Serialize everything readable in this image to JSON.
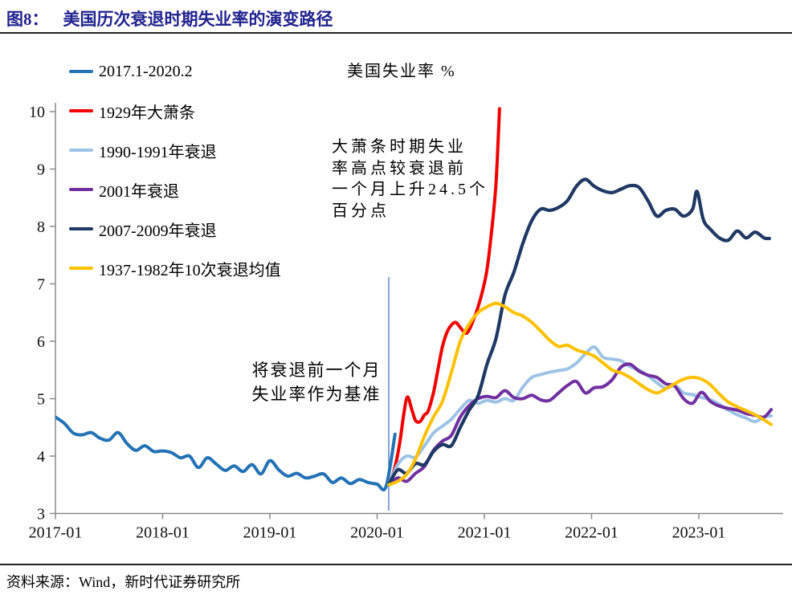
{
  "figure": {
    "label": "图8：",
    "title": "美国历次衰退时期失业率的演变路径"
  },
  "source": "资料来源：Wind，新时代证券研究所",
  "annotations": {
    "depression_note": "大萧条时期失业\n率高点较衰退前\n一个月上升24.5个\n百分点",
    "baseline_note": "将衰退前一个月\n失业率作为基准"
  },
  "chart_data": {
    "type": "line",
    "title": "美国失业率 %",
    "grid": false,
    "legend_position": "upper-left",
    "axis_color": "#8a8a8a",
    "baseline_color": "#4472C4",
    "baseline_month": 37.3,
    "y_axis": {
      "min": 3,
      "max": 10,
      "ticks": [
        3,
        4,
        5,
        6,
        7,
        8,
        9,
        10
      ]
    },
    "x_axis": {
      "tick_months": [
        0,
        12,
        24,
        36,
        48,
        60,
        72
      ],
      "tick_labels": [
        "2017-01",
        "2018-01",
        "2019-01",
        "2020-01",
        "2021-01",
        "2022-01",
        "2023-01"
      ]
    },
    "series": [
      {
        "name": "2017.1-2020.2",
        "color": "#2272B5",
        "width": 4,
        "start_month": 0,
        "points": [
          [
            0,
            4.68
          ],
          [
            1,
            4.57
          ],
          [
            2,
            4.4
          ],
          [
            3,
            4.37
          ],
          [
            4,
            4.41
          ],
          [
            5,
            4.31
          ],
          [
            6,
            4.28
          ],
          [
            7,
            4.41
          ],
          [
            8,
            4.22
          ],
          [
            9,
            4.1
          ],
          [
            10,
            4.18
          ],
          [
            11,
            4.08
          ],
          [
            12,
            4.09
          ],
          [
            13,
            4.06
          ],
          [
            14,
            3.97
          ],
          [
            15,
            4.0
          ],
          [
            16,
            3.8
          ],
          [
            17,
            3.97
          ],
          [
            18,
            3.86
          ],
          [
            19,
            3.75
          ],
          [
            20,
            3.83
          ],
          [
            21,
            3.73
          ],
          [
            22,
            3.85
          ],
          [
            23,
            3.69
          ],
          [
            24,
            3.92
          ],
          [
            25,
            3.76
          ],
          [
            26,
            3.65
          ],
          [
            27,
            3.7
          ],
          [
            28,
            3.62
          ],
          [
            29,
            3.65
          ],
          [
            30,
            3.69
          ],
          [
            31,
            3.54
          ],
          [
            32,
            3.62
          ],
          [
            33,
            3.52
          ],
          [
            34,
            3.59
          ],
          [
            35,
            3.54
          ],
          [
            36,
            3.51
          ],
          [
            37,
            3.47
          ],
          [
            38,
            4.38
          ]
        ]
      },
      {
        "name": "1929年大萧条",
        "color": "#F20000",
        "width": 4,
        "start_month": 37.3,
        "points": [
          [
            0,
            3.5
          ],
          [
            0.6,
            3.75
          ],
          [
            1.2,
            4.2
          ],
          [
            1.7,
            4.75
          ],
          [
            2.1,
            5.03
          ],
          [
            2.6,
            4.8
          ],
          [
            3,
            4.62
          ],
          [
            3.5,
            4.6
          ],
          [
            4,
            4.72
          ],
          [
            4.4,
            4.78
          ],
          [
            5,
            5.1
          ],
          [
            5.5,
            5.5
          ],
          [
            6,
            5.9
          ],
          [
            6.5,
            6.15
          ],
          [
            7,
            6.28
          ],
          [
            7.5,
            6.33
          ],
          [
            8,
            6.24
          ],
          [
            8.6,
            6.14
          ],
          [
            9,
            6.2
          ],
          [
            9.5,
            6.38
          ],
          [
            10,
            6.6
          ],
          [
            10.5,
            6.88
          ],
          [
            11,
            7.25
          ],
          [
            11.5,
            7.9
          ],
          [
            12,
            8.75
          ],
          [
            12.4,
            10.05
          ]
        ]
      },
      {
        "name": "1990-1991年衰退",
        "color": "#9DC3E6",
        "width": 4,
        "start_month": 37.3,
        "points": [
          [
            0,
            3.5
          ],
          [
            1,
            3.85
          ],
          [
            2,
            4.0
          ],
          [
            3,
            3.98
          ],
          [
            4,
            4.18
          ],
          [
            5,
            4.4
          ],
          [
            6,
            4.52
          ],
          [
            7,
            4.64
          ],
          [
            8,
            4.82
          ],
          [
            9,
            4.97
          ],
          [
            10,
            4.92
          ],
          [
            11,
            4.97
          ],
          [
            12,
            4.94
          ],
          [
            13,
            5.0
          ],
          [
            14,
            4.97
          ],
          [
            15,
            5.2
          ],
          [
            16,
            5.37
          ],
          [
            17,
            5.42
          ],
          [
            18,
            5.46
          ],
          [
            19,
            5.49
          ],
          [
            20,
            5.52
          ],
          [
            21,
            5.62
          ],
          [
            22,
            5.78
          ],
          [
            23,
            5.9
          ],
          [
            24,
            5.72
          ],
          [
            25,
            5.69
          ],
          [
            26,
            5.66
          ],
          [
            27,
            5.56
          ],
          [
            28,
            5.5
          ],
          [
            29,
            5.4
          ],
          [
            30,
            5.28
          ],
          [
            31,
            5.18
          ],
          [
            32,
            5.23
          ],
          [
            33,
            5.1
          ],
          [
            34,
            5.07
          ],
          [
            35,
            5.02
          ],
          [
            36,
            4.98
          ],
          [
            37,
            4.9
          ],
          [
            38,
            4.8
          ],
          [
            39,
            4.72
          ],
          [
            40,
            4.66
          ],
          [
            41,
            4.6
          ],
          [
            42,
            4.68
          ],
          [
            42.8,
            4.7
          ]
        ]
      },
      {
        "name": "2001年衰退",
        "color": "#7030A0",
        "width": 4,
        "start_month": 37.3,
        "points": [
          [
            0,
            3.5
          ],
          [
            1,
            3.62
          ],
          [
            2,
            3.56
          ],
          [
            3,
            3.7
          ],
          [
            4,
            3.82
          ],
          [
            5,
            4.1
          ],
          [
            6,
            4.26
          ],
          [
            7,
            4.36
          ],
          [
            8,
            4.68
          ],
          [
            9,
            4.88
          ],
          [
            10,
            5.0
          ],
          [
            11,
            5.04
          ],
          [
            12,
            5.02
          ],
          [
            13,
            5.14
          ],
          [
            14,
            5.02
          ],
          [
            15,
            5.0
          ],
          [
            16,
            5.06
          ],
          [
            17,
            4.98
          ],
          [
            18,
            4.97
          ],
          [
            19,
            5.1
          ],
          [
            20,
            5.23
          ],
          [
            21,
            5.3
          ],
          [
            22,
            5.1
          ],
          [
            23,
            5.19
          ],
          [
            24,
            5.21
          ],
          [
            25,
            5.33
          ],
          [
            26,
            5.55
          ],
          [
            27,
            5.6
          ],
          [
            28,
            5.48
          ],
          [
            29,
            5.41
          ],
          [
            30,
            5.37
          ],
          [
            31,
            5.26
          ],
          [
            32,
            5.22
          ],
          [
            33,
            5.0
          ],
          [
            34,
            4.92
          ],
          [
            35,
            5.11
          ],
          [
            36,
            4.95
          ],
          [
            37,
            4.87
          ],
          [
            38,
            4.83
          ],
          [
            39,
            4.8
          ],
          [
            40,
            4.74
          ],
          [
            41,
            4.71
          ],
          [
            42,
            4.68
          ],
          [
            42.8,
            4.81
          ]
        ]
      },
      {
        "name": "2007-2009年衰退",
        "color": "#1F3864",
        "width": 4.2,
        "start_month": 37.3,
        "points": [
          [
            0,
            3.5
          ],
          [
            1,
            3.76
          ],
          [
            2,
            3.7
          ],
          [
            3,
            3.87
          ],
          [
            4,
            3.85
          ],
          [
            5,
            4.08
          ],
          [
            6,
            4.2
          ],
          [
            7,
            4.18
          ],
          [
            8,
            4.5
          ],
          [
            9,
            4.8
          ],
          [
            10,
            5.05
          ],
          [
            11,
            5.6
          ],
          [
            12,
            6.05
          ],
          [
            13,
            6.8
          ],
          [
            14,
            7.2
          ],
          [
            15,
            7.7
          ],
          [
            16,
            8.1
          ],
          [
            17,
            8.3
          ],
          [
            18,
            8.28
          ],
          [
            19,
            8.33
          ],
          [
            20,
            8.45
          ],
          [
            21,
            8.7
          ],
          [
            22,
            8.82
          ],
          [
            23,
            8.7
          ],
          [
            24,
            8.62
          ],
          [
            25,
            8.59
          ],
          [
            26,
            8.65
          ],
          [
            27,
            8.71
          ],
          [
            28,
            8.68
          ],
          [
            29,
            8.45
          ],
          [
            30,
            8.18
          ],
          [
            31,
            8.28
          ],
          [
            32,
            8.3
          ],
          [
            33,
            8.18
          ],
          [
            34,
            8.3
          ],
          [
            34.5,
            8.61
          ],
          [
            35.2,
            8.12
          ],
          [
            36,
            7.95
          ],
          [
            37,
            7.8
          ],
          [
            38,
            7.76
          ],
          [
            39,
            7.92
          ],
          [
            40,
            7.8
          ],
          [
            41,
            7.9
          ],
          [
            42,
            7.8
          ],
          [
            42.6,
            7.79
          ]
        ]
      },
      {
        "name": "1937-1982年10次衰退均值",
        "color": "#FFC000",
        "width": 4,
        "start_month": 37.3,
        "points": [
          [
            0,
            3.5
          ],
          [
            1,
            3.56
          ],
          [
            2,
            3.68
          ],
          [
            3,
            3.95
          ],
          [
            4,
            4.35
          ],
          [
            5,
            4.68
          ],
          [
            6,
            4.95
          ],
          [
            7,
            5.45
          ],
          [
            8,
            6.0
          ],
          [
            9,
            6.3
          ],
          [
            10,
            6.5
          ],
          [
            11,
            6.6
          ],
          [
            12,
            6.66
          ],
          [
            13,
            6.6
          ],
          [
            14,
            6.5
          ],
          [
            15,
            6.44
          ],
          [
            16,
            6.33
          ],
          [
            17,
            6.18
          ],
          [
            18,
            6.02
          ],
          [
            19,
            5.91
          ],
          [
            20,
            5.93
          ],
          [
            21,
            5.85
          ],
          [
            22,
            5.8
          ],
          [
            23,
            5.74
          ],
          [
            24,
            5.62
          ],
          [
            25,
            5.5
          ],
          [
            26,
            5.45
          ],
          [
            27,
            5.37
          ],
          [
            28,
            5.26
          ],
          [
            29,
            5.16
          ],
          [
            30,
            5.1
          ],
          [
            31,
            5.17
          ],
          [
            32,
            5.26
          ],
          [
            33,
            5.34
          ],
          [
            34,
            5.37
          ],
          [
            35,
            5.34
          ],
          [
            36,
            5.24
          ],
          [
            37,
            5.08
          ],
          [
            38,
            4.94
          ],
          [
            39,
            4.86
          ],
          [
            40,
            4.79
          ],
          [
            41,
            4.72
          ],
          [
            42,
            4.63
          ],
          [
            42.8,
            4.55
          ]
        ]
      }
    ]
  }
}
